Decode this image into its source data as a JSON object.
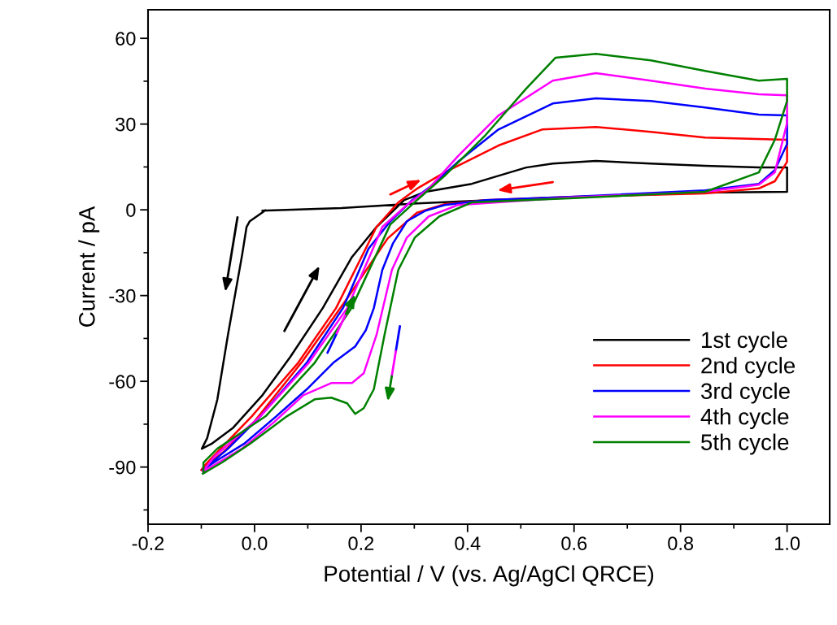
{
  "chart_data": {
    "type": "line",
    "xlabel": "Potential / V (vs. Ag/AgCl QRCE)",
    "ylabel": "Current / pA",
    "xlim": [
      -0.2,
      1.08
    ],
    "xticks": [
      -0.2,
      {
        "value": 0,
        "label": "0.0"
      },
      0.2,
      0.4,
      0.6,
      0.8,
      {
        "value": 1,
        "label": "1.0"
      }
    ],
    "ylim": [
      -110,
      70
    ],
    "yticks": [
      -90,
      -60,
      -30,
      0,
      30,
      60
    ],
    "grid": false,
    "legend": "lower right",
    "marker": "none",
    "line_style": "solid",
    "series": [
      {
        "name": "1st cycle",
        "color": "#000000",
        "x": [
          0.02,
          -0.009,
          -0.015,
          -0.023,
          -0.05,
          -0.07,
          -0.089,
          -0.099,
          -0.081,
          -0.04,
          0.015,
          0.067,
          0.128,
          0.183,
          0.229,
          0.281,
          0.321,
          0.408,
          0.51,
          0.56,
          0.641,
          0.744,
          0.846,
          0.947,
          1.0,
          1.0,
          0.846,
          0.693,
          0.54,
          0.408,
          0.281,
          0.163,
          0.015
        ],
        "values": [
          -0.2,
          -4.0,
          -6.0,
          -15.4,
          -43.8,
          -66.5,
          -79.9,
          -83.6,
          -81.9,
          -76.2,
          -64.8,
          -51.5,
          -34.4,
          -16.5,
          -6.0,
          3.4,
          6.3,
          9.1,
          14.8,
          16.2,
          17.1,
          16.2,
          15.4,
          14.8,
          14.8,
          6.3,
          6.0,
          5.1,
          4.0,
          3.1,
          2.0,
          0.6,
          -0.3
        ]
      },
      {
        "name": "2nd cycle",
        "color": "#ff0000",
        "x": [
          -0.1,
          -0.093,
          -0.055,
          -0.005,
          0.082,
          0.153,
          0.229,
          0.27,
          0.305,
          0.357,
          0.458,
          0.54,
          0.641,
          0.744,
          0.846,
          1.0,
          1.0,
          0.977,
          0.947,
          0.846,
          0.591,
          0.434,
          0.357,
          0.305,
          0.25,
          0.17,
          0.09,
          0.0,
          -0.06,
          -0.098
        ],
        "values": [
          -91,
          -89.3,
          -81.9,
          -72.2,
          -53.5,
          -34.4,
          -6.0,
          2.6,
          7.4,
          13.1,
          22.5,
          28.1,
          29.0,
          27.3,
          25.3,
          24.5,
          16.8,
          10.0,
          7.5,
          5.7,
          4.5,
          3.4,
          2.0,
          -1.0,
          -10.0,
          -32.0,
          -53.0,
          -74.0,
          -85.0,
          -90.5
        ]
      },
      {
        "name": "3rd cycle",
        "color": "#0000ff",
        "x": [
          -0.096,
          -0.093,
          -0.05,
          0.011,
          0.098,
          0.166,
          0.214,
          0.255,
          0.296,
          0.331,
          0.382,
          0.458,
          0.56,
          0.641,
          0.744,
          0.846,
          0.947,
          1.0,
          1.0,
          0.977,
          0.947,
          0.846,
          0.591,
          0.434,
          0.357,
          0.321,
          0.286,
          0.26,
          0.24,
          0.224,
          0.209,
          0.189,
          0.148,
          0.098,
          0.041,
          -0.02,
          -0.07,
          -0.097
        ],
        "values": [
          -90.7,
          -90.4,
          -83.6,
          -72.2,
          -53.5,
          -34.4,
          -13.6,
          -4.0,
          3.4,
          8.2,
          16.8,
          28.1,
          37.2,
          39.0,
          38.1,
          35.8,
          33.3,
          33.0,
          23.0,
          13.9,
          9.1,
          6.8,
          4.5,
          3.4,
          1.7,
          -0.3,
          -4.0,
          -11.7,
          -21.0,
          -34.4,
          -42.1,
          -47.8,
          -53.5,
          -62.8,
          -72.2,
          -81.9,
          -87.6,
          -91.0
        ]
      },
      {
        "name": "4th cycle",
        "color": "#ff00ff",
        "x": [
          -0.096,
          -0.076,
          0.011,
          0.102,
          0.174,
          0.24,
          0.286,
          0.327,
          0.382,
          0.458,
          0.56,
          0.641,
          0.744,
          0.846,
          0.947,
          1.0,
          1.0,
          0.977,
          0.947,
          0.846,
          0.591,
          0.382,
          0.327,
          0.286,
          0.258,
          0.229,
          0.205,
          0.183,
          0.144,
          0.092,
          0.037,
          -0.024,
          -0.076,
          -0.097
        ],
        "values": [
          -91.3,
          -86.4,
          -72.2,
          -53.5,
          -34.4,
          -6.0,
          1.7,
          7.4,
          18.8,
          33.0,
          45.2,
          47.8,
          45.2,
          42.4,
          40.4,
          40.1,
          30.4,
          13.1,
          8.8,
          6.3,
          4.3,
          1.7,
          -2.3,
          -9.7,
          -21.0,
          -43.8,
          -57.2,
          -60.6,
          -60.6,
          -64.8,
          -74.2,
          -83.6,
          -89.3,
          -91.6
        ]
      },
      {
        "name": "5th cycle",
        "color": "#008000",
        "x": [
          -0.096,
          -0.096,
          -0.07,
          0.021,
          0.113,
          0.182,
          0.255,
          0.305,
          0.357,
          0.434,
          0.51,
          0.565,
          0.641,
          0.744,
          0.846,
          0.947,
          1.0,
          1.0,
          0.977,
          0.947,
          0.846,
          0.591,
          0.408,
          0.347,
          0.301,
          0.27,
          0.244,
          0.224,
          0.205,
          0.189,
          0.174,
          0.144,
          0.113,
          0.061,
          -0.009,
          -0.061,
          -0.097
        ],
        "values": [
          -92.1,
          -88.4,
          -83.6,
          -72.2,
          -53.5,
          -34.4,
          -5.1,
          3.4,
          11.9,
          26.2,
          42.4,
          53.2,
          54.6,
          52.3,
          48.6,
          45.2,
          45.8,
          38.1,
          24.5,
          13.1,
          6.3,
          4.0,
          2.6,
          -2.3,
          -9.7,
          -21.0,
          -43.8,
          -62.8,
          -69.4,
          -71.4,
          -67.7,
          -65.7,
          -66.3,
          -72.2,
          -81.9,
          -88.4,
          -92.3
        ]
      }
    ]
  }
}
